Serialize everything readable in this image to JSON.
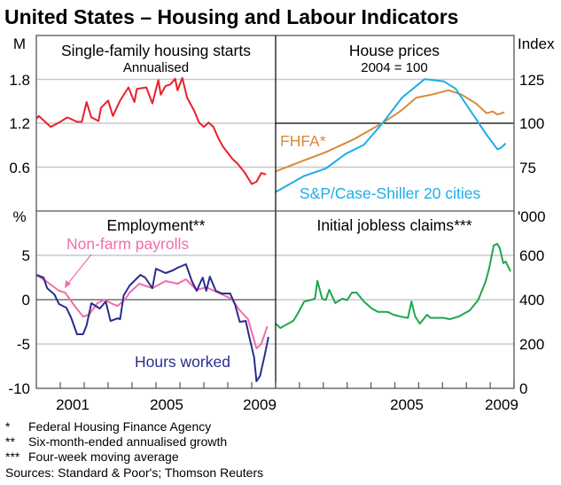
{
  "title": "United States – Housing and Labour Indicators",
  "colors": {
    "starts": "#e8202a",
    "fhfa": "#d98a3a",
    "cs": "#1aaee8",
    "payrolls": "#f06ea9",
    "hours": "#2b2d8e",
    "claims": "#1fa64e"
  },
  "chart_data": [
    {
      "type": "line",
      "title": "Single-family housing starts",
      "subtitle": "Annualised",
      "ylabel": "M",
      "ylim": [
        0,
        2.4
      ],
      "yticks": [
        "1.8",
        "1.2",
        "0.6"
      ],
      "xlim": [
        2000,
        2010
      ],
      "series": [
        {
          "name": "Housing starts",
          "x": [
            2000.0,
            2000.1,
            2000.6,
            2000.95,
            2001.3,
            2001.7,
            2001.9,
            2002.1,
            2002.3,
            2002.6,
            2002.7,
            2003.0,
            2003.2,
            2003.5,
            2003.85,
            2004.1,
            2004.2,
            2004.6,
            2004.85,
            2005.1,
            2005.2,
            2005.4,
            2005.6,
            2005.8,
            2005.9,
            2006.1,
            2006.3,
            2006.4,
            2006.6,
            2006.8,
            2007.0,
            2007.2,
            2007.4,
            2007.6,
            2007.8,
            2008.2,
            2008.4,
            2008.7,
            2009.0,
            2009.2,
            2009.4,
            2009.6
          ],
          "values": [
            1.26,
            1.3,
            1.15,
            1.21,
            1.28,
            1.22,
            1.22,
            1.49,
            1.28,
            1.23,
            1.41,
            1.51,
            1.3,
            1.51,
            1.69,
            1.49,
            1.67,
            1.69,
            1.47,
            1.79,
            1.59,
            1.71,
            1.73,
            1.81,
            1.65,
            1.82,
            1.55,
            1.49,
            1.37,
            1.21,
            1.15,
            1.21,
            1.15,
            1.0,
            0.88,
            0.71,
            0.65,
            0.53,
            0.37,
            0.4,
            0.52,
            0.5
          ]
        }
      ]
    },
    {
      "type": "line",
      "title": "House prices",
      "subtitle": "2004 = 100",
      "ylabel": "Index",
      "ylim": [
        50,
        150
      ],
      "yticks": [
        "125",
        "100",
        "75"
      ],
      "xlim": [
        2000,
        2010
      ],
      "series": [
        {
          "name": "FHFA*",
          "x": [
            2000.0,
            2001.1,
            2002.1,
            2003.3,
            2004.5,
            2005.25,
            2005.9,
            2006.55,
            2007.25,
            2007.8,
            2008.4,
            2008.85,
            2009.1,
            2009.3,
            2009.6
          ],
          "values": [
            72.6,
            78.4,
            83.5,
            91,
            100.3,
            107,
            114.6,
            116.3,
            118.8,
            116.3,
            111.3,
            105.7,
            106.7,
            105,
            106.2
          ]
        },
        {
          "name": "S&P/Case-Shiller 20 cities",
          "x": [
            2000.0,
            2001.2,
            2002.1,
            2002.95,
            2003.7,
            2004.5,
            2005.3,
            2006.25,
            2007.05,
            2007.55,
            2008.3,
            2008.8,
            2009.3,
            2009.45,
            2009.65
          ],
          "values": [
            60.8,
            70,
            74.2,
            82.7,
            87.7,
            100.3,
            114.6,
            125.1,
            123.9,
            119.7,
            104.5,
            94.4,
            85.2,
            86,
            88.5
          ]
        }
      ]
    },
    {
      "type": "line",
      "title": "Employment**",
      "ylabel": "%",
      "ylim": [
        -10,
        10
      ],
      "yticks": [
        "5",
        "0",
        "-5",
        "-10"
      ],
      "xlim": [
        2000,
        2010
      ],
      "xticklabels": [
        "2001",
        "2005",
        "2009"
      ],
      "series": [
        {
          "name": "Non-farm payrolls",
          "x": [
            2000.0,
            2000.45,
            2000.95,
            2001.2,
            2001.6,
            2001.95,
            2002.2,
            2002.55,
            2002.85,
            2003.2,
            2003.4,
            2003.7,
            2003.9,
            2004.3,
            2004.85,
            2005.4,
            2005.9,
            2006.25,
            2006.7,
            2007.1,
            2007.75,
            2008.15,
            2008.5,
            2008.85,
            2009.2,
            2009.4,
            2009.65
          ],
          "values": [
            2.8,
            2.0,
            1.0,
            0.8,
            -0.7,
            -1.9,
            -1.7,
            -0.4,
            0,
            -0.5,
            -0.7,
            0,
            0.8,
            1.8,
            1.3,
            2.1,
            1.8,
            2.3,
            1.1,
            1.4,
            0.6,
            0.1,
            -1.2,
            -2.2,
            -5.5,
            -5,
            -3.0
          ]
        },
        {
          "name": "Hours worked",
          "x": [
            2000.0,
            2000.3,
            2000.45,
            2000.75,
            2000.95,
            2001.25,
            2001.45,
            2001.7,
            2001.95,
            2002.1,
            2002.3,
            2002.65,
            2002.9,
            2003.1,
            2003.4,
            2003.5,
            2003.65,
            2003.9,
            2004.35,
            2004.55,
            2004.85,
            2005.0,
            2005.4,
            2005.7,
            2005.9,
            2006.25,
            2006.5,
            2006.7,
            2006.95,
            2007.1,
            2007.25,
            2007.5,
            2007.75,
            2008.1,
            2008.3,
            2008.5,
            2008.75,
            2008.9,
            2009.1,
            2009.2,
            2009.35,
            2009.55,
            2009.7
          ],
          "values": [
            2.8,
            2.5,
            1.3,
            0.6,
            -0.5,
            -0.9,
            -2.0,
            -3.9,
            -3.9,
            -2.9,
            -0.4,
            -1.0,
            -0.2,
            -2.4,
            -2.1,
            -2.2,
            0.5,
            1.6,
            2.8,
            2.5,
            1.3,
            3.5,
            3.0,
            3.3,
            3.6,
            4.0,
            2.1,
            1.0,
            2.5,
            1.0,
            2.6,
            1.0,
            0.7,
            0.7,
            -0.5,
            -2.5,
            -2.4,
            -4.2,
            -6.5,
            -9.2,
            -8.6,
            -6.2,
            -4.2
          ]
        }
      ]
    },
    {
      "type": "line",
      "title": "Initial jobless claims***",
      "ylabel": "'000",
      "ylim": [
        0,
        800
      ],
      "yticks": [
        "600",
        "400",
        "200",
        "0"
      ],
      "xlim": [
        2000,
        2010
      ],
      "xticklabels": [
        "2005",
        "2009"
      ],
      "series": [
        {
          "name": "Initial jobless claims",
          "x": [
            2000.0,
            2000.2,
            2000.4,
            2000.65,
            2000.75,
            2000.9,
            2001.2,
            2001.45,
            2001.65,
            2001.75,
            2001.95,
            2002.1,
            2002.25,
            2002.5,
            2002.8,
            2003.0,
            2003.2,
            2003.4,
            2003.7,
            2004.05,
            2004.3,
            2004.7,
            2004.95,
            2005.2,
            2005.55,
            2005.7,
            2005.85,
            2006.05,
            2006.35,
            2006.5,
            2007.05,
            2007.3,
            2007.7,
            2008.15,
            2008.5,
            2008.8,
            2008.95,
            2009.15,
            2009.3,
            2009.4,
            2009.55,
            2009.65,
            2009.85
          ],
          "values": [
            292,
            272,
            285,
            299,
            306,
            332,
            392,
            398,
            405,
            485,
            405,
            398,
            445,
            385,
            405,
            398,
            432,
            432,
            392,
            359,
            345,
            345,
            332,
            325,
            318,
            392,
            325,
            292,
            332,
            318,
            318,
            312,
            325,
            352,
            399,
            479,
            539,
            645,
            652,
            632,
            565,
            572,
            528
          ]
        }
      ]
    }
  ],
  "footnotes": [
    {
      "mark": "*",
      "text": "Federal Housing Finance Agency"
    },
    {
      "mark": "**",
      "text": "Six-month-ended annualised growth"
    },
    {
      "mark": "***",
      "text": "Four-week moving average"
    }
  ],
  "sources": "Sources: Standard & Poor's; Thomson Reuters"
}
